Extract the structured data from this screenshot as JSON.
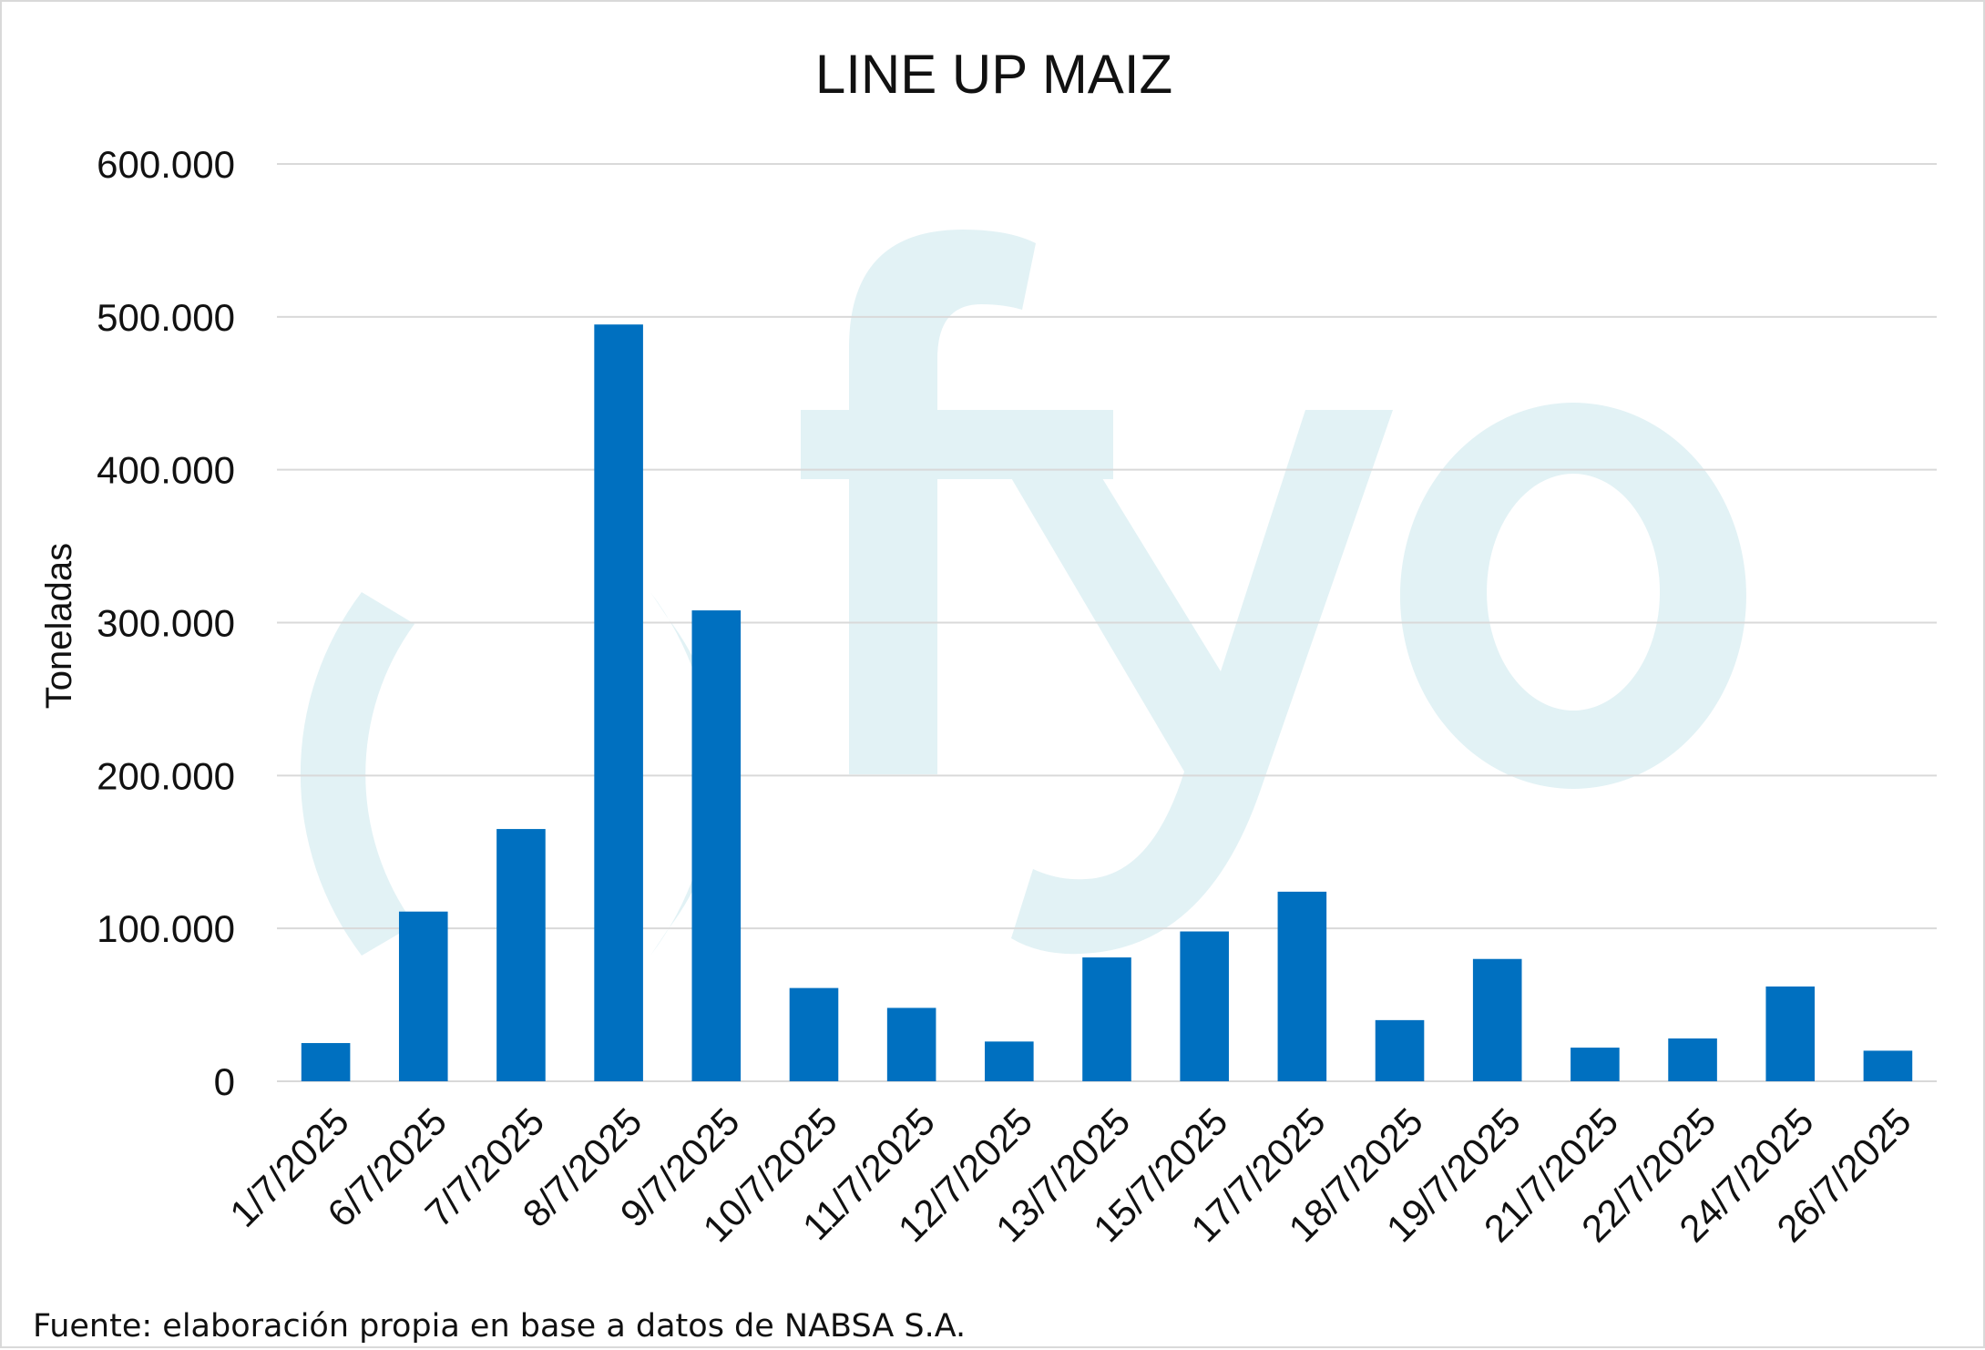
{
  "chart_data": {
    "type": "bar",
    "title": "LINE UP MAIZ",
    "xlabel": "",
    "ylabel": "Toneladas",
    "categories": [
      "1/7/2025",
      "6/7/2025",
      "7/7/2025",
      "8/7/2025",
      "9/7/2025",
      "10/7/2025",
      "11/7/2025",
      "12/7/2025",
      "13/7/2025",
      "15/7/2025",
      "17/7/2025",
      "18/7/2025",
      "19/7/2025",
      "21/7/2025",
      "22/7/2025",
      "24/7/2025",
      "26/7/2025"
    ],
    "values": [
      25000,
      111000,
      165000,
      495000,
      308000,
      61000,
      48000,
      26000,
      81000,
      98000,
      124000,
      40000,
      80000,
      22000,
      28000,
      62000,
      20000
    ],
    "ylim": [
      0,
      600000
    ],
    "yticks": [
      0,
      100000,
      200000,
      300000,
      400000,
      500000,
      600000
    ],
    "ytick_labels": [
      "0",
      "100.000",
      "200.000",
      "300.000",
      "400.000",
      "500.000",
      "600.000"
    ],
    "grid": true,
    "legend": "none",
    "bar_color": "#0070c0",
    "watermark_color": "#e2f2f5"
  },
  "watermark": {
    "text": "fyo"
  },
  "source_note": "Fuente: elaboración propia en base a datos de NABSA S.A."
}
